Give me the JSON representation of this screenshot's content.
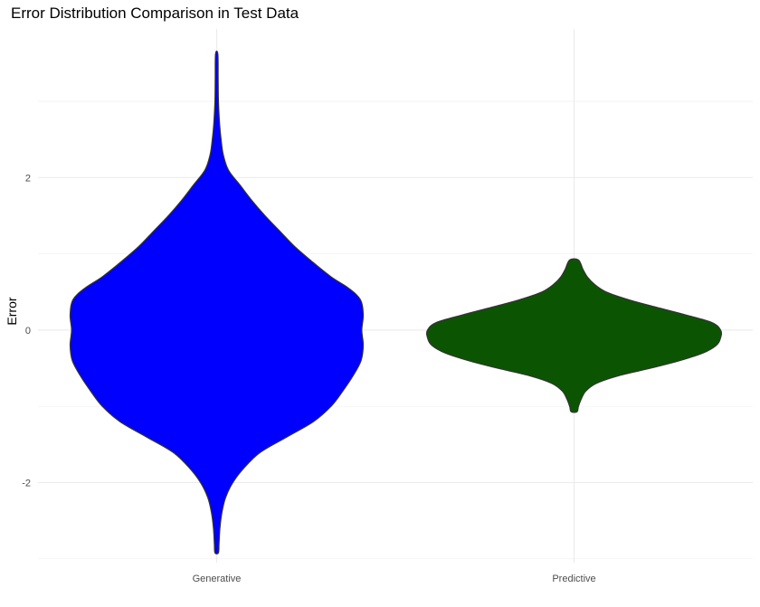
{
  "chart_data": {
    "type": "violin",
    "title": "Error Distribution Comparison in Test Data",
    "xlabel": "",
    "ylabel": "Error",
    "categories": [
      "Generative",
      "Predictive"
    ],
    "ylim": [
      -3.05,
      3.95
    ],
    "y_ticks": [
      -2,
      0,
      2
    ],
    "y_tick_labels": [
      "-2",
      "0",
      "2"
    ],
    "grid": true,
    "series": [
      {
        "category": "Generative",
        "fill": "#0000ff",
        "y_min": -2.92,
        "y_max": 3.62,
        "profile": [
          [
            -2.92,
            0.012
          ],
          [
            -2.8,
            0.016
          ],
          [
            -2.6,
            0.022
          ],
          [
            -2.4,
            0.035
          ],
          [
            -2.2,
            0.06
          ],
          [
            -2.0,
            0.11
          ],
          [
            -1.8,
            0.19
          ],
          [
            -1.6,
            0.3
          ],
          [
            -1.4,
            0.48
          ],
          [
            -1.2,
            0.66
          ],
          [
            -1.0,
            0.78
          ],
          [
            -0.8,
            0.86
          ],
          [
            -0.6,
            0.93
          ],
          [
            -0.4,
            0.985
          ],
          [
            -0.2,
            1.0
          ],
          [
            0.0,
            0.99
          ],
          [
            0.2,
            1.0
          ],
          [
            0.4,
            0.98
          ],
          [
            0.55,
            0.9
          ],
          [
            0.7,
            0.78
          ],
          [
            0.9,
            0.65
          ],
          [
            1.1,
            0.53
          ],
          [
            1.3,
            0.43
          ],
          [
            1.5,
            0.33
          ],
          [
            1.7,
            0.24
          ],
          [
            1.9,
            0.16
          ],
          [
            2.1,
            0.08
          ],
          [
            2.3,
            0.045
          ],
          [
            2.5,
            0.03
          ],
          [
            2.7,
            0.02
          ],
          [
            3.0,
            0.012
          ],
          [
            3.3,
            0.01
          ],
          [
            3.62,
            0.008
          ]
        ]
      },
      {
        "category": "Predictive",
        "fill": "#0b5502",
        "y_min": -1.07,
        "y_max": 0.92,
        "profile": [
          [
            -1.07,
            0.02
          ],
          [
            -1.0,
            0.03
          ],
          [
            -0.9,
            0.05
          ],
          [
            -0.8,
            0.08
          ],
          [
            -0.7,
            0.15
          ],
          [
            -0.6,
            0.3
          ],
          [
            -0.5,
            0.52
          ],
          [
            -0.4,
            0.72
          ],
          [
            -0.3,
            0.88
          ],
          [
            -0.2,
            0.97
          ],
          [
            -0.1,
            1.0
          ],
          [
            0.0,
            1.0
          ],
          [
            0.1,
            0.94
          ],
          [
            0.2,
            0.76
          ],
          [
            0.3,
            0.56
          ],
          [
            0.4,
            0.37
          ],
          [
            0.5,
            0.22
          ],
          [
            0.6,
            0.14
          ],
          [
            0.7,
            0.09
          ],
          [
            0.8,
            0.06
          ],
          [
            0.92,
            0.03
          ]
        ]
      }
    ]
  }
}
